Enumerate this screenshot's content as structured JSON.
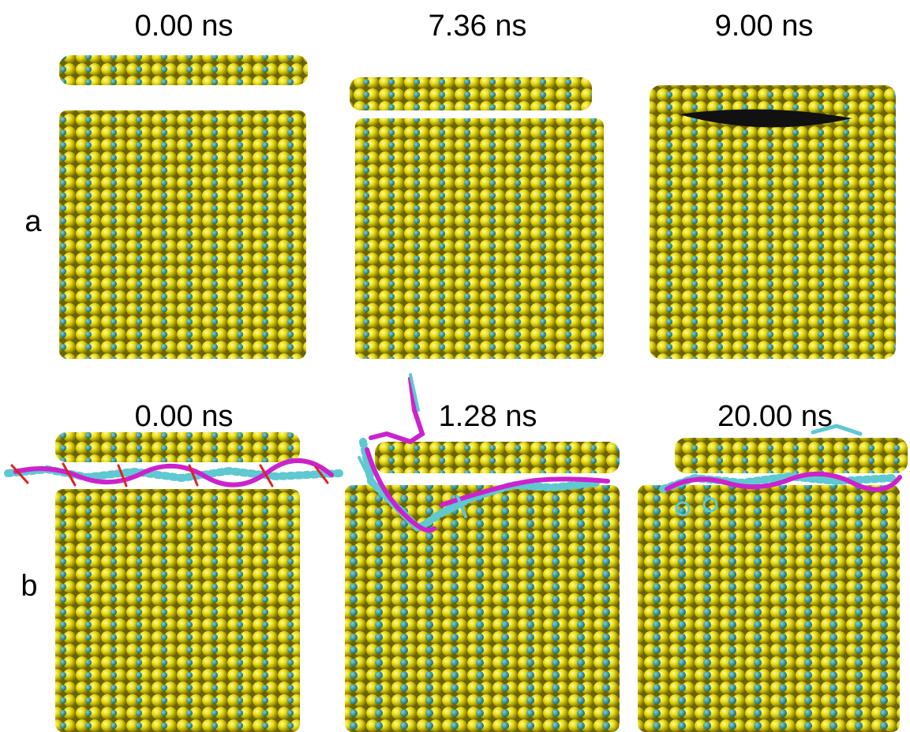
{
  "rows": [
    {
      "label": "a",
      "panels": [
        {
          "time": "0.00 ns"
        },
        {
          "time": "7.36 ns"
        },
        {
          "time": "9.00 ns"
        }
      ]
    },
    {
      "label": "b",
      "panels": [
        {
          "time": "0.00 ns"
        },
        {
          "time": "1.28 ns"
        },
        {
          "time": "20.00 ns"
        }
      ]
    }
  ]
}
